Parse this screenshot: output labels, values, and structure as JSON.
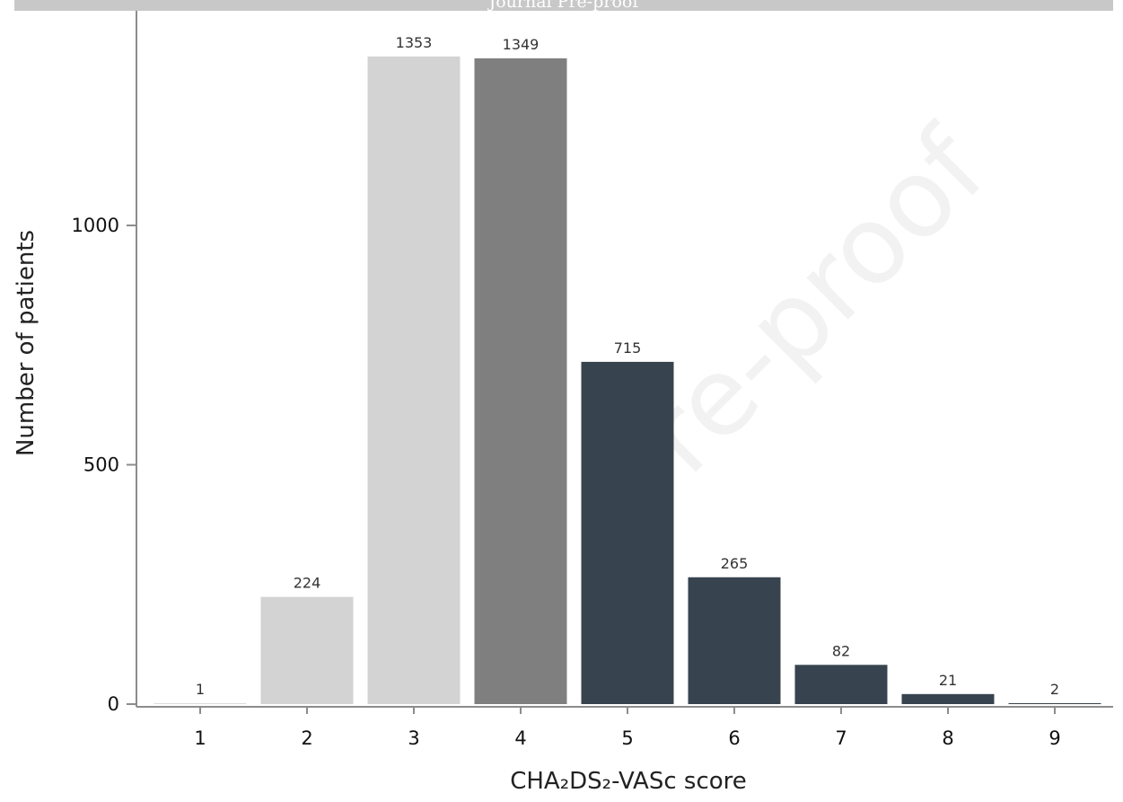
{
  "header": {
    "banner_text": "Journal Pre-proof",
    "watermark_text": "Pre-proof"
  },
  "chart_data": {
    "type": "bar",
    "title": "",
    "xlabel": "CHA₂DS₂-VASc score",
    "ylabel": "Number of patients",
    "categories": [
      "1",
      "2",
      "3",
      "4",
      "5",
      "6",
      "7",
      "8",
      "9"
    ],
    "values": [
      1,
      224,
      1353,
      1349,
      715,
      265,
      82,
      21,
      2
    ],
    "data_labels": [
      "1",
      "224",
      "1353",
      "1349",
      "715",
      "265",
      "82",
      "21",
      "2"
    ],
    "bar_colors": [
      "#d3d3d3",
      "#d3d3d3",
      "#d3d3d3",
      "#7f7f7f",
      "#37444f",
      "#37444f",
      "#37444f",
      "#37444f",
      "#37444f"
    ],
    "yticks": [
      0,
      500,
      1000
    ],
    "ylim": [
      0,
      1400
    ],
    "grid": false,
    "legend": "none"
  }
}
